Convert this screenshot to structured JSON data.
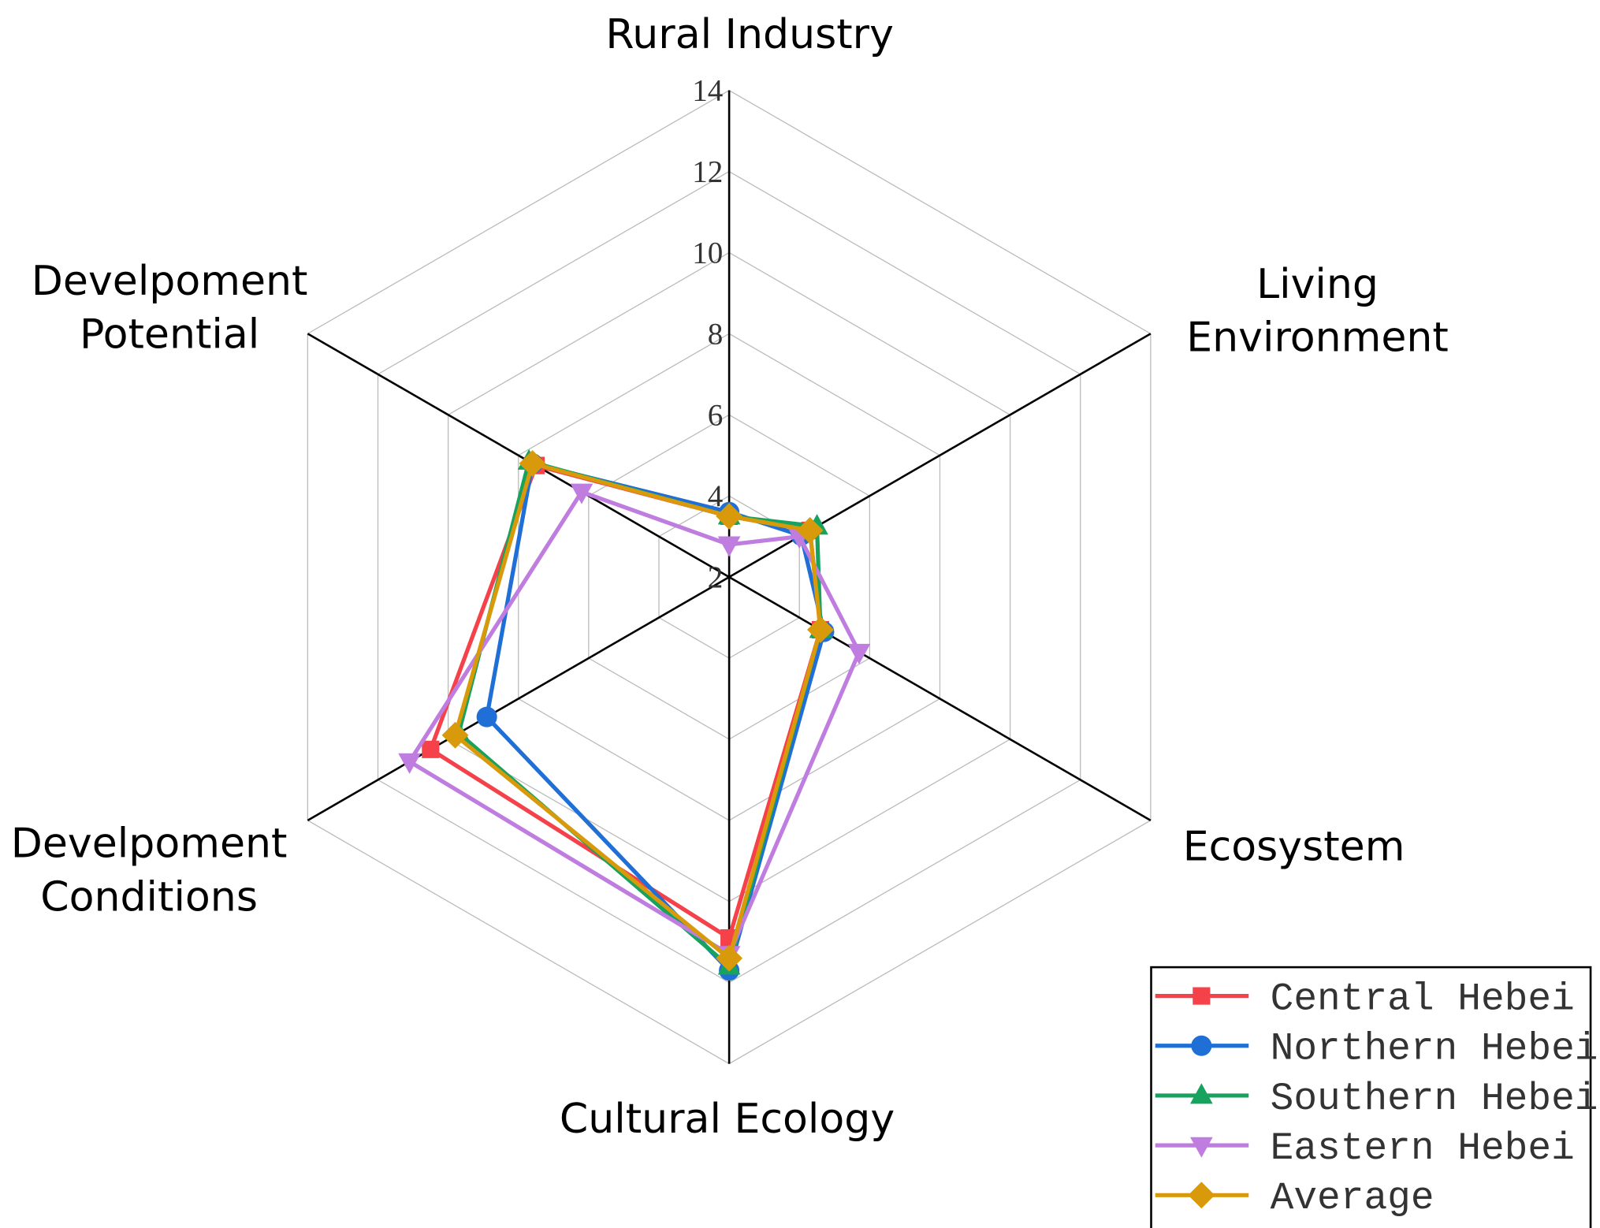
{
  "chart_data": {
    "type": "radar",
    "categories": [
      "Rural Industry",
      "Living Environment",
      "Ecosystem",
      "Cultural Ecology",
      "Develpoment Conditions",
      "Develpoment Potential"
    ],
    "rlim": [
      2,
      14
    ],
    "rticks": [
      2,
      4,
      6,
      8,
      10,
      12,
      14
    ],
    "grid": true,
    "legend": "lower right",
    "series": [
      {
        "name": "Central Hebei",
        "color": "#f5424a",
        "marker": "square",
        "values": [
          3.5,
          4.3,
          4.6,
          10.9,
          10.5,
          7.5
        ]
      },
      {
        "name": "Northern Hebei",
        "color": "#1f6fd6",
        "marker": "circle",
        "values": [
          3.6,
          4.05,
          4.7,
          11.7,
          8.9,
          7.6
        ]
      },
      {
        "name": "Southern Hebei",
        "color": "#17a25e",
        "marker": "triangle-up",
        "values": [
          3.5,
          4.5,
          4.6,
          11.6,
          9.7,
          7.7
        ]
      },
      {
        "name": "Eastern Hebei",
        "color": "#c07de0",
        "marker": "triangle-down",
        "values": [
          2.8,
          4.0,
          5.7,
          11.3,
          11.1,
          6.2
        ]
      },
      {
        "name": "Average",
        "color": "#d89a0a",
        "marker": "diamond",
        "values": [
          3.5,
          4.3,
          4.6,
          11.4,
          9.8,
          7.6
        ]
      }
    ]
  }
}
